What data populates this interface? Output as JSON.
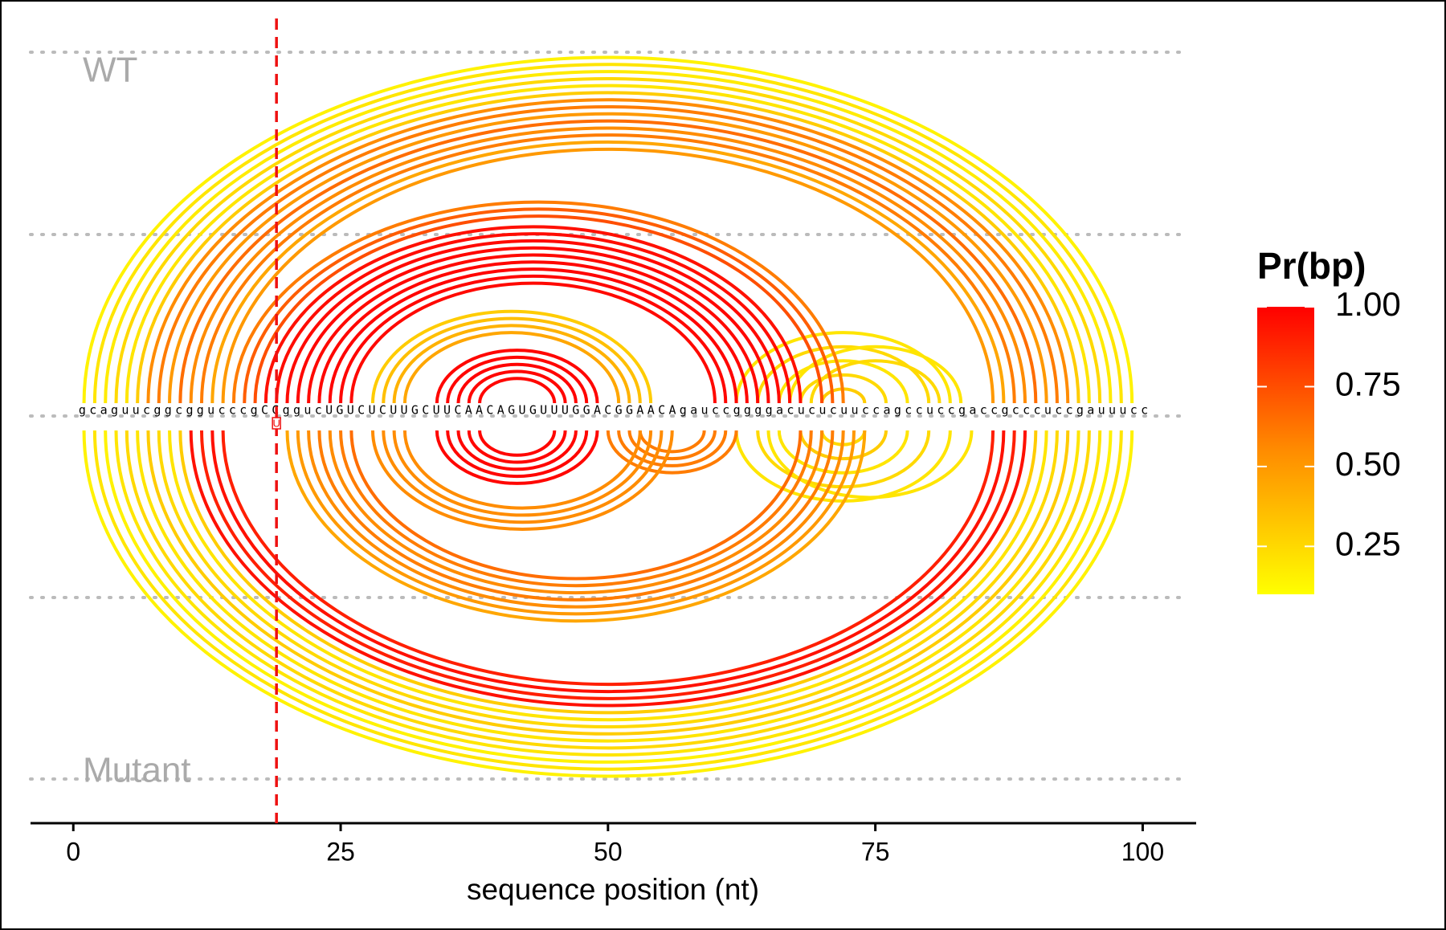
{
  "chart_data": {
    "type": "arc",
    "xlabel": "sequence position (nt)",
    "xlim": [
      -4,
      105
    ],
    "xticks": [
      0,
      25,
      50,
      75,
      100
    ],
    "sequence": "gcaguucggcggucccgCCggucUGUCUCUUGCUUCAACAGUGUUUGGACGGAACAgauccggggacucucuuccagccuccgaccgcccuccgauuucc",
    "mutation": {
      "position": 19,
      "label": "U"
    },
    "colorbar": {
      "title": "Pr(bp)",
      "clim": [
        0.1,
        1.0
      ],
      "colors": [
        "#ffff00",
        "#ff8c00",
        "#ff0000"
      ],
      "ticks": [
        0.25,
        {
          "value": 0.5,
          "label": "0.50"
        },
        0.75,
        {
          "value": 1,
          "label": "1.00"
        }
      ]
    },
    "series": [
      {
        "name": "WT",
        "i": [
          1,
          2,
          3,
          4,
          5,
          6,
          7,
          8,
          9,
          10,
          11,
          12,
          13,
          14,
          62,
          64,
          66,
          68,
          70,
          67,
          69,
          28,
          29,
          30,
          31,
          15,
          16,
          17,
          18,
          19,
          20,
          21,
          22,
          23,
          24,
          25,
          26,
          34,
          35,
          36,
          37,
          38
        ],
        "j": [
          99,
          98,
          97,
          96,
          95,
          94,
          93,
          92,
          91,
          90,
          89,
          88,
          87,
          86,
          82,
          80,
          78,
          76,
          74,
          83,
          81,
          54,
          53,
          52,
          51,
          72,
          71,
          70,
          68,
          67,
          66,
          65,
          64,
          63,
          62,
          61,
          60,
          49,
          48,
          47,
          46,
          45
        ],
        "p": [
          0.15,
          0.2,
          0.18,
          0.25,
          0.2,
          0.3,
          0.55,
          0.6,
          0.5,
          0.65,
          0.55,
          0.6,
          0.45,
          0.5,
          0.2,
          0.25,
          0.2,
          0.25,
          0.3,
          0.2,
          0.25,
          0.3,
          0.35,
          0.4,
          0.45,
          0.6,
          0.7,
          0.75,
          0.95,
          0.96,
          0.97,
          0.98,
          0.97,
          0.98,
          0.99,
          0.98,
          0.97,
          0.98,
          0.98,
          0.99,
          0.98,
          0.98
        ]
      },
      {
        "name": "Mutant",
        "i": [
          1,
          2,
          3,
          4,
          5,
          6,
          7,
          8,
          9,
          10,
          62,
          64,
          66,
          68,
          65,
          70,
          20,
          21,
          22,
          23,
          24,
          25,
          26,
          50,
          51,
          52,
          53,
          28,
          29,
          30,
          31,
          11,
          12,
          13,
          14,
          34,
          35,
          36,
          37,
          38
        ],
        "j": [
          99,
          98,
          97,
          96,
          95,
          94,
          93,
          92,
          91,
          90,
          82,
          80,
          78,
          76,
          84,
          74,
          74,
          73,
          72,
          71,
          70,
          69,
          68,
          62,
          61,
          60,
          59,
          56,
          55,
          54,
          53,
          89,
          88,
          87,
          86,
          49,
          48,
          47,
          46,
          45
        ],
        "p": [
          0.15,
          0.2,
          0.15,
          0.2,
          0.25,
          0.2,
          0.3,
          0.25,
          0.2,
          0.3,
          0.2,
          0.25,
          0.2,
          0.3,
          0.2,
          0.25,
          0.45,
          0.5,
          0.55,
          0.6,
          0.55,
          0.6,
          0.65,
          0.6,
          0.6,
          0.6,
          0.6,
          0.55,
          0.55,
          0.55,
          0.55,
          0.95,
          0.9,
          0.95,
          0.9,
          0.98,
          0.98,
          0.98,
          0.98,
          0.98
        ]
      }
    ]
  }
}
